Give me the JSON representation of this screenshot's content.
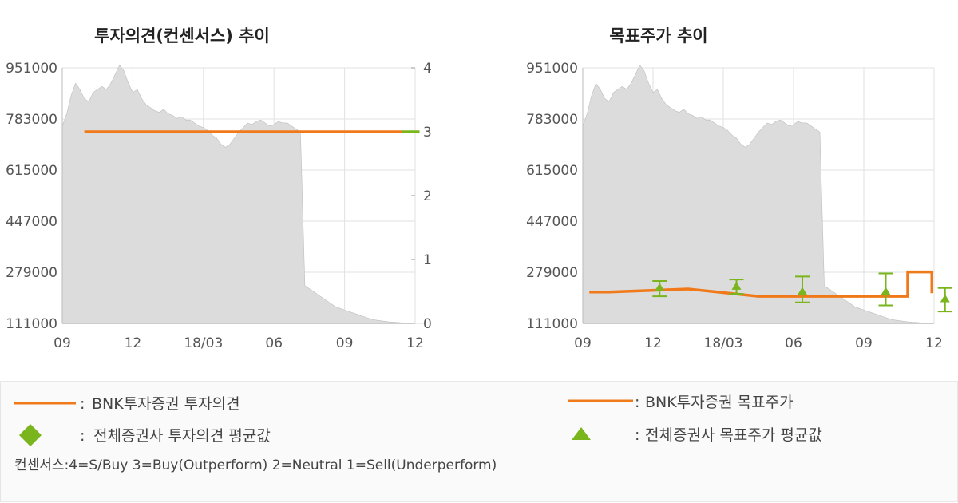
{
  "chart_data": [
    {
      "type": "line",
      "title": "투자의견(컨센서스) 추이",
      "y_left": {
        "ticks": [
          "951000",
          "783000",
          "615000",
          "447000",
          "279000",
          "111000"
        ],
        "ylim": [
          111000,
          951000
        ]
      },
      "y_right": {
        "ticks": [
          "4",
          "3",
          "2",
          "1",
          "0"
        ],
        "ylim": [
          0,
          4
        ]
      },
      "x_ticks": [
        "09",
        "12",
        "18/03",
        "06",
        "09",
        "12"
      ],
      "grid": true,
      "price_area": {
        "color": "#dcdcdc",
        "x": [
          0,
          0.2,
          0.4,
          0.6,
          0.8,
          1.0,
          1.2,
          1.4,
          1.6,
          1.8,
          2.0,
          2.2,
          2.4,
          2.6,
          2.8,
          3.0,
          3.2,
          3.4,
          3.6,
          3.8,
          4.0,
          4.2,
          4.4,
          4.6,
          4.8,
          5.0,
          5.2,
          5.4,
          5.6,
          5.8,
          6.0,
          6.2,
          6.4,
          6.6,
          6.8,
          7.0,
          7.2,
          7.4,
          7.6,
          7.8,
          8.0,
          8.2,
          8.4,
          8.6,
          8.8,
          9.0,
          9.2,
          9.4,
          9.6,
          9.8,
          10.0,
          10.2,
          10.4,
          10.6,
          10.8,
          11.0,
          11.2,
          11.4,
          11.6,
          11.8,
          12.0,
          12.2,
          12.4,
          12.6,
          12.8,
          13.0,
          13.2,
          13.4,
          13.6,
          13.8,
          14.0,
          14.2,
          14.4,
          14.6,
          14.8,
          15.0,
          15.2,
          15.4,
          15.6,
          15.8,
          16.0,
          16.2,
          16.4
        ],
        "values": [
          760000,
          800000,
          860000,
          900000,
          880000,
          850000,
          840000,
          870000,
          880000,
          890000,
          880000,
          900000,
          930000,
          960000,
          940000,
          900000,
          870000,
          880000,
          850000,
          830000,
          820000,
          810000,
          805000,
          815000,
          800000,
          795000,
          785000,
          790000,
          780000,
          780000,
          770000,
          760000,
          755000,
          745000,
          730000,
          720000,
          700000,
          690000,
          700000,
          720000,
          740000,
          755000,
          770000,
          765000,
          775000,
          780000,
          770000,
          760000,
          765000,
          775000,
          770000,
          770000,
          760000,
          750000,
          740000,
          235000,
          225000,
          215000,
          205000,
          195000,
          185000,
          175000,
          165000,
          160000,
          155000,
          150000,
          145000,
          140000,
          135000,
          130000,
          125000,
          122000,
          120000,
          118000,
          116000,
          115000,
          114000,
          113000,
          112000,
          111500,
          111000,
          111000,
          111000
        ]
      },
      "series": [
        {
          "name": "BNK투자증권 투자의견",
          "color": "#f07a1a",
          "x": [
            1,
            15.4
          ],
          "values": [
            3,
            3
          ]
        },
        {
          "name": "전체증권사 투자의견 평균값",
          "color": "#7ab51d",
          "x": [
            15.4,
            16.2
          ],
          "values": [
            3,
            3
          ]
        }
      ]
    },
    {
      "type": "line",
      "title": "목표주가 추이",
      "y_left": {
        "ticks": [
          "951000",
          "783000",
          "615000",
          "447000",
          "279000",
          "111000"
        ],
        "ylim": [
          111000,
          951000
        ]
      },
      "x_ticks": [
        "09",
        "12",
        "18/03",
        "06",
        "09",
        "12"
      ],
      "grid": true,
      "price_area": {
        "color": "#dcdcdc",
        "x": [
          0,
          0.2,
          0.4,
          0.6,
          0.8,
          1.0,
          1.2,
          1.4,
          1.6,
          1.8,
          2.0,
          2.2,
          2.4,
          2.6,
          2.8,
          3.0,
          3.2,
          3.4,
          3.6,
          3.8,
          4.0,
          4.2,
          4.4,
          4.6,
          4.8,
          5.0,
          5.2,
          5.4,
          5.6,
          5.8,
          6.0,
          6.2,
          6.4,
          6.6,
          6.8,
          7.0,
          7.2,
          7.4,
          7.6,
          7.8,
          8.0,
          8.2,
          8.4,
          8.6,
          8.8,
          9.0,
          9.2,
          9.4,
          9.6,
          9.8,
          10.0,
          10.2,
          10.4,
          10.6,
          10.8,
          11.0,
          11.2,
          11.4,
          11.6,
          11.8,
          12.0,
          12.2,
          12.4,
          12.6,
          12.8,
          13.0,
          13.2,
          13.4,
          13.6,
          13.8,
          14.0,
          14.2,
          14.4,
          14.6,
          14.8,
          15.0,
          15.2,
          15.4,
          15.6,
          15.8,
          16.0
        ],
        "values": [
          760000,
          800000,
          860000,
          900000,
          880000,
          850000,
          840000,
          870000,
          880000,
          890000,
          880000,
          900000,
          930000,
          960000,
          940000,
          900000,
          870000,
          880000,
          850000,
          830000,
          820000,
          810000,
          805000,
          815000,
          800000,
          795000,
          785000,
          790000,
          780000,
          780000,
          770000,
          760000,
          755000,
          745000,
          730000,
          720000,
          700000,
          690000,
          700000,
          720000,
          740000,
          755000,
          770000,
          765000,
          775000,
          780000,
          770000,
          760000,
          765000,
          775000,
          770000,
          770000,
          760000,
          750000,
          740000,
          235000,
          225000,
          215000,
          205000,
          195000,
          185000,
          175000,
          165000,
          160000,
          155000,
          150000,
          145000,
          140000,
          135000,
          130000,
          125000,
          122000,
          120000,
          118000,
          116000,
          115000,
          114000,
          113000,
          112000,
          111000,
          111000
        ]
      },
      "series": [
        {
          "name": "BNK투자증권 목표주가",
          "color": "#f07a1a",
          "type": "step",
          "x": [
            0.3,
            1.2,
            1.2,
            4.8,
            4.8,
            8.0,
            8.0,
            14.8,
            14.8,
            15.9,
            15.9
          ],
          "values": [
            214000,
            214000,
            214000,
            224000,
            224000,
            200000,
            200000,
            200000,
            280000,
            280000,
            210000
          ]
        },
        {
          "name": "전체증권사 목표주가 평균값",
          "color": "#7ab51d",
          "type": "errorbar",
          "points": [
            {
              "x": 3.5,
              "value": 228000,
              "low": 200000,
              "high": 250000
            },
            {
              "x": 7.0,
              "value": 232000,
              "low": 208000,
              "high": 255000
            },
            {
              "x": 10.0,
              "value": 215000,
              "low": 180000,
              "high": 265000
            },
            {
              "x": 13.8,
              "value": 215000,
              "low": 170000,
              "high": 275000
            },
            {
              "x": 16.5,
              "value": 191000,
              "low": 150000,
              "high": 227000
            }
          ]
        }
      ]
    }
  ],
  "legend": {
    "left_line": "BNK투자증권 투자의견",
    "left_marker": "전체증권사 투자의견 평균값",
    "right_line": "BNK투자증권 목표주가",
    "right_marker": "전체증권사 목표주가 평균값",
    "separator": ":",
    "colors": {
      "line": "#f07a1a",
      "marker": "#7ab51d"
    },
    "marker_icons": {
      "left": "diamond-icon",
      "right": "triangle-icon"
    },
    "note": "컨센서스:4=S/Buy    3=Buy(Outperform)  2=Neutral   1=Sell(Underperform)"
  }
}
